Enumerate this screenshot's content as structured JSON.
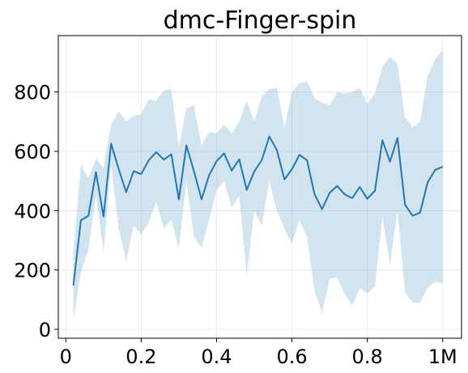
{
  "chart_data": {
    "type": "line",
    "title": "dmc-Finger-spin",
    "xlabel": "",
    "ylabel": "",
    "xlim": [
      -0.02,
      1.05
    ],
    "ylim": [
      -30,
      990
    ],
    "grid": true,
    "legend": "none",
    "x_ticks": [
      {
        "value": 0.0,
        "label": "0"
      },
      {
        "value": 0.2,
        "label": "0.2"
      },
      {
        "value": 0.4,
        "label": "0.4"
      },
      {
        "value": 0.6,
        "label": "0.6"
      },
      {
        "value": 0.8,
        "label": "0.8"
      },
      {
        "value": 1.0,
        "label": "1M"
      }
    ],
    "y_ticks": [
      {
        "value": 0,
        "label": "0"
      },
      {
        "value": 200,
        "label": "200"
      },
      {
        "value": 400,
        "label": "400"
      },
      {
        "value": 600,
        "label": "600"
      },
      {
        "value": 800,
        "label": "800"
      }
    ],
    "colors": {
      "line": "#1f77b4",
      "band": "#1f77b4",
      "band_opacity": 0.2,
      "grid": "#e6e6e6"
    },
    "x": [
      0.02,
      0.04,
      0.06,
      0.08,
      0.1,
      0.12,
      0.14,
      0.16,
      0.18,
      0.2,
      0.22,
      0.24,
      0.26,
      0.28,
      0.3,
      0.32,
      0.34,
      0.36,
      0.38,
      0.4,
      0.42,
      0.44,
      0.46,
      0.48,
      0.5,
      0.52,
      0.54,
      0.56,
      0.58,
      0.6,
      0.62,
      0.64,
      0.66,
      0.68,
      0.7,
      0.72,
      0.74,
      0.76,
      0.78,
      0.8,
      0.82,
      0.84,
      0.86,
      0.88,
      0.9,
      0.92,
      0.94,
      0.96,
      0.98,
      1.0
    ],
    "series": [
      {
        "mean": [
          148,
          367,
          383,
          530,
          380,
          626,
          541,
          462,
          533,
          523,
          570,
          597,
          572,
          590,
          438,
          620,
          532,
          438,
          519,
          567,
          593,
          535,
          573,
          470,
          532,
          570,
          650,
          605,
          505,
          540,
          588,
          570,
          455,
          405,
          460,
          483,
          455,
          442,
          480,
          440,
          467,
          637,
          565,
          645,
          420,
          383,
          393,
          495,
          537,
          548
        ],
        "lower": [
          30,
          190,
          270,
          450,
          260,
          550,
          340,
          230,
          350,
          320,
          360,
          430,
          340,
          370,
          270,
          500,
          310,
          275,
          370,
          470,
          500,
          410,
          450,
          180,
          400,
          350,
          500,
          400,
          340,
          290,
          370,
          310,
          130,
          55,
          170,
          175,
          120,
          80,
          140,
          120,
          145,
          380,
          215,
          400,
          125,
          90,
          90,
          140,
          160,
          155
        ],
        "upper": [
          260,
          555,
          510,
          575,
          545,
          690,
          735,
          700,
          720,
          725,
          775,
          770,
          805,
          810,
          615,
          745,
          755,
          620,
          665,
          660,
          690,
          660,
          700,
          770,
          700,
          785,
          810,
          815,
          680,
          800,
          830,
          835,
          780,
          765,
          755,
          800,
          795,
          800,
          815,
          760,
          795,
          885,
          920,
          895,
          715,
          680,
          700,
          855,
          910,
          940
        ]
      }
    ]
  }
}
